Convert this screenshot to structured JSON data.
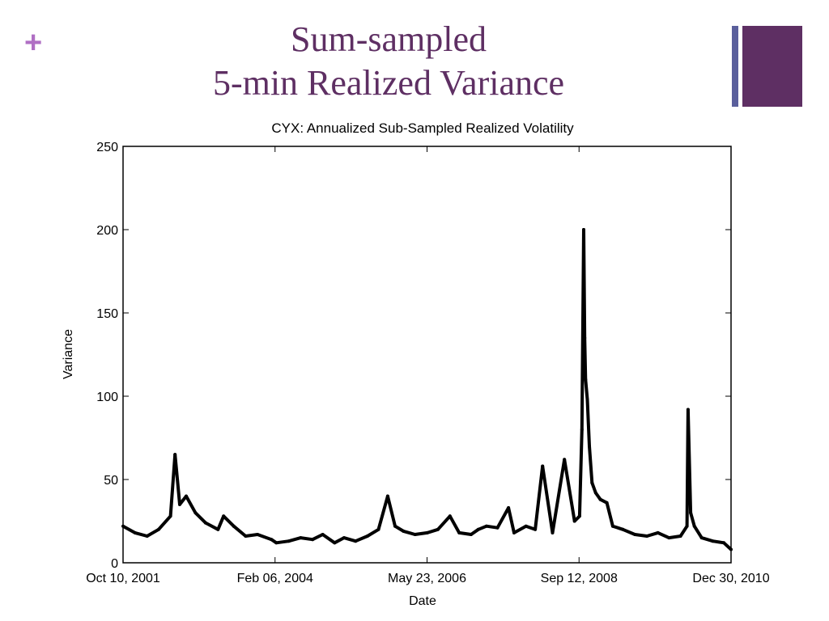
{
  "slide": {
    "plus_icon": "+",
    "title_line1": "Sum-sampled",
    "title_line2": "5-min Realized Variance"
  },
  "colors": {
    "accent": "#5e2f63",
    "plus": "#b06fc4",
    "bar": "#5a5f9c",
    "line": "#000000"
  },
  "chart_data": {
    "type": "line",
    "title": "CYX: Annualized Sub-Sampled Realized Volatility",
    "xlabel": "Date",
    "ylabel": "Variance",
    "ylim": [
      0,
      250
    ],
    "yticks": [
      "0",
      "50",
      "100",
      "150",
      "200",
      "250"
    ],
    "xticks": [
      "Oct 10, 2001",
      "Feb 06, 2004",
      "May 23, 2006",
      "Sep 12, 2008",
      "Dec 30, 2010"
    ],
    "xlim": [
      "2001-10-10",
      "2010-12-30"
    ],
    "grid": false,
    "series": [
      {
        "x": [
          "2001-10-10",
          "2001-12-15",
          "2002-02-20",
          "2002-04-25",
          "2002-06-30",
          "2002-07-25",
          "2002-08-20",
          "2002-09-25",
          "2002-11-15",
          "2003-01-10",
          "2003-03-20",
          "2003-04-20",
          "2003-06-15",
          "2003-08-20",
          "2003-10-25",
          "2004-01-10",
          "2004-02-06",
          "2004-04-15",
          "2004-06-20",
          "2004-08-25",
          "2004-10-20",
          "2004-12-25",
          "2005-02-15",
          "2005-04-20",
          "2005-06-25",
          "2005-08-25",
          "2005-10-15",
          "2005-11-25",
          "2006-01-10",
          "2006-03-15",
          "2006-05-23",
          "2006-07-20",
          "2006-09-25",
          "2006-11-15",
          "2007-01-20",
          "2007-03-01",
          "2007-04-15",
          "2007-06-15",
          "2007-08-15",
          "2007-09-15",
          "2007-11-20",
          "2008-01-10",
          "2008-02-20",
          "2008-04-15",
          "2008-06-20",
          "2008-08-15",
          "2008-09-12",
          "2008-09-25",
          "2008-10-05",
          "2008-10-10",
          "2008-10-15",
          "2008-10-25",
          "2008-11-05",
          "2008-11-20",
          "2008-12-10",
          "2009-01-05",
          "2009-02-10",
          "2009-03-15",
          "2009-05-10",
          "2009-07-15",
          "2009-09-20",
          "2009-11-20",
          "2010-01-20",
          "2010-03-25",
          "2010-04-30",
          "2010-05-06",
          "2010-05-20",
          "2010-06-10",
          "2010-07-20",
          "2010-09-20",
          "2010-11-20",
          "2010-12-30"
        ],
        "values": [
          22,
          18,
          16,
          20,
          28,
          65,
          35,
          40,
          30,
          24,
          20,
          28,
          22,
          16,
          17,
          14,
          12,
          13,
          15,
          14,
          17,
          12,
          15,
          13,
          16,
          20,
          40,
          22,
          19,
          17,
          18,
          20,
          28,
          18,
          17,
          20,
          22,
          21,
          33,
          18,
          22,
          20,
          58,
          18,
          62,
          25,
          28,
          80,
          200,
          135,
          110,
          98,
          70,
          48,
          42,
          38,
          36,
          22,
          20,
          17,
          16,
          18,
          15,
          16,
          22,
          92,
          30,
          22,
          15,
          13,
          12,
          8
        ]
      }
    ]
  }
}
